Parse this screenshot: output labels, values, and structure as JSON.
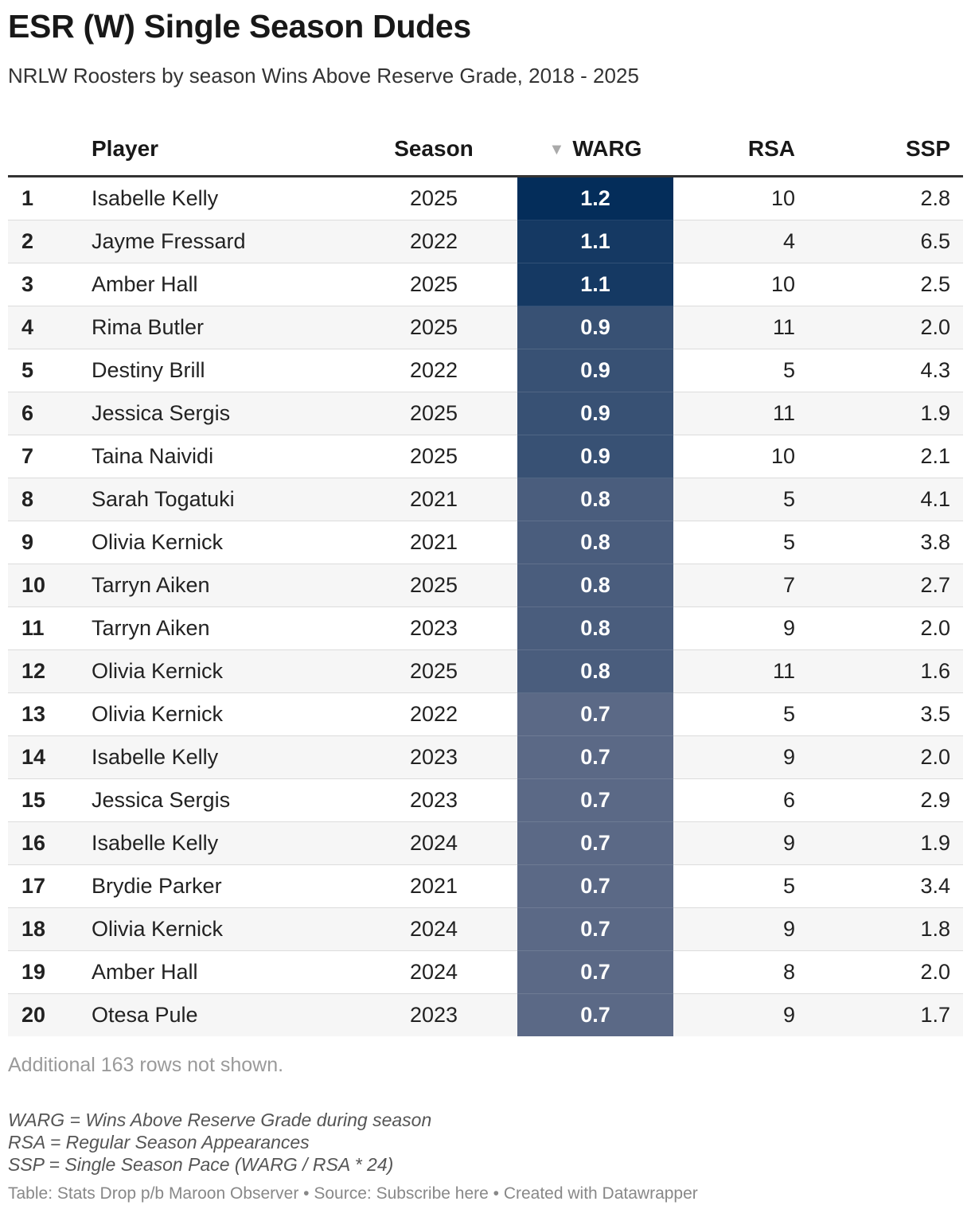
{
  "title": "ESR (W) Single Season Dudes",
  "subtitle": "NRLW Roosters by season Wins Above Reserve Grade, 2018 - 2025",
  "columns": {
    "player": "Player",
    "season": "Season",
    "warg": "WARG",
    "rsa": "RSA",
    "ssp": "SSP"
  },
  "sort_indicator": "▼",
  "warg_color_scale": {
    "low": "#5b6986",
    "high": "#042d5a"
  },
  "more_rows": "Additional 163 rows not shown.",
  "notes": [
    "WARG = Wins Above Reserve Grade during season",
    "RSA = Regular Season Appearances",
    "SSP = Single Season Pace (WARG / RSA * 24)"
  ],
  "footer": "Table: Stats Drop p/b Maroon Observer • Source: Subscribe here • Created with Datawrapper",
  "chart_data": {
    "type": "table",
    "columns": [
      "",
      "Player",
      "Season",
      "WARG",
      "RSA",
      "SSP"
    ],
    "rows": [
      [
        "1",
        "Isabelle Kelly",
        "2025",
        "1.2",
        "10",
        "2.8"
      ],
      [
        "2",
        "Jayme Fressard",
        "2022",
        "1.1",
        "4",
        "6.5"
      ],
      [
        "3",
        "Amber Hall",
        "2025",
        "1.1",
        "10",
        "2.5"
      ],
      [
        "4",
        "Rima Butler",
        "2025",
        "0.9",
        "11",
        "2.0"
      ],
      [
        "5",
        "Destiny Brill",
        "2022",
        "0.9",
        "5",
        "4.3"
      ],
      [
        "6",
        "Jessica Sergis",
        "2025",
        "0.9",
        "11",
        "1.9"
      ],
      [
        "7",
        "Taina Naividi",
        "2025",
        "0.9",
        "10",
        "2.1"
      ],
      [
        "8",
        "Sarah Togatuki",
        "2021",
        "0.8",
        "5",
        "4.1"
      ],
      [
        "9",
        "Olivia Kernick",
        "2021",
        "0.8",
        "5",
        "3.8"
      ],
      [
        "10",
        "Tarryn Aiken",
        "2025",
        "0.8",
        "7",
        "2.7"
      ],
      [
        "11",
        "Tarryn Aiken",
        "2023",
        "0.8",
        "9",
        "2.0"
      ],
      [
        "12",
        "Olivia Kernick",
        "2025",
        "0.8",
        "11",
        "1.6"
      ],
      [
        "13",
        "Olivia Kernick",
        "2022",
        "0.7",
        "5",
        "3.5"
      ],
      [
        "14",
        "Isabelle Kelly",
        "2023",
        "0.7",
        "9",
        "2.0"
      ],
      [
        "15",
        "Jessica Sergis",
        "2023",
        "0.7",
        "6",
        "2.9"
      ],
      [
        "16",
        "Isabelle Kelly",
        "2024",
        "0.7",
        "9",
        "1.9"
      ],
      [
        "17",
        "Brydie Parker",
        "2021",
        "0.7",
        "5",
        "3.4"
      ],
      [
        "18",
        "Olivia Kernick",
        "2024",
        "0.7",
        "9",
        "1.8"
      ],
      [
        "19",
        "Amber Hall",
        "2024",
        "0.7",
        "8",
        "2.0"
      ],
      [
        "20",
        "Otesa Pule",
        "2023",
        "0.7",
        "9",
        "1.7"
      ]
    ]
  }
}
